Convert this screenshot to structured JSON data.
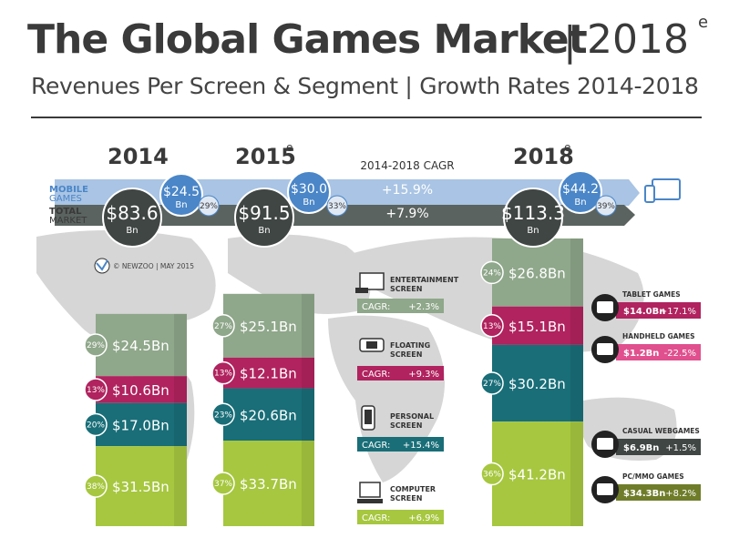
{
  "title": "The Global Games Market",
  "title_year": "2018",
  "title_sup": "e",
  "subtitle": "Revenues Per Screen & Segment | Growth Rates 2014-2018",
  "credit": "© NEWZOO | MAY 2015",
  "legend": {
    "mobile": "MOBILE",
    "mobile_sub": "GAMES",
    "total": "TOTAL",
    "total_sub": "MARKET"
  },
  "cagr_header": "2014-2018 CAGR",
  "cagr_mobile": "+15.9%",
  "cagr_total": "+7.9%",
  "colors": {
    "mobile_arrow": "#a9c4e4",
    "total_arrow": "#5a6360",
    "mobile_bubble": "#4a86c8",
    "total_bubble": "#3f4644",
    "entertainment": "#8fa78a",
    "floating": "#b0235e",
    "personal": "#196e78",
    "computer": "#a6c73f",
    "map": "#d6d6d6"
  },
  "chart_data": {
    "type": "bar",
    "stacked": true,
    "categories": [
      "2014",
      "2015",
      "2018"
    ],
    "category_sup": [
      "",
      "e",
      "e"
    ],
    "series": [
      {
        "name": "ENTERTAINMENT SCREEN",
        "labels": [
          "$24.5Bn",
          "$25.1Bn",
          "$26.8Bn"
        ],
        "values": [
          24.5,
          25.1,
          26.8
        ],
        "shares": [
          "29%",
          "27%",
          "24%"
        ],
        "cagr": "+2.3%"
      },
      {
        "name": "FLOATING SCREEN",
        "labels": [
          "$10.6Bn",
          "$12.1Bn",
          "$15.1Bn"
        ],
        "values": [
          10.6,
          12.1,
          15.1
        ],
        "shares": [
          "13%",
          "13%",
          "13%"
        ],
        "cagr": "+9.3%"
      },
      {
        "name": "PERSONAL SCREEN",
        "labels": [
          "$17.0Bn",
          "$20.6Bn",
          "$30.2Bn"
        ],
        "values": [
          17.0,
          20.6,
          30.2
        ],
        "shares": [
          "20%",
          "23%",
          "27%"
        ],
        "cagr": "+15.4%"
      },
      {
        "name": "COMPUTER SCREEN",
        "labels": [
          "$31.5Bn",
          "$33.7Bn",
          "$41.2Bn"
        ],
        "values": [
          31.5,
          33.7,
          41.2
        ],
        "shares": [
          "38%",
          "37%",
          "36%"
        ],
        "cagr": "+6.9%"
      }
    ],
    "mobile_games": {
      "labels": [
        "$24.5",
        "$30.0",
        "$44.2"
      ],
      "values": [
        24.5,
        30.0,
        44.2
      ],
      "unit": "Bn",
      "shares": [
        "29%",
        "33%",
        "39%"
      ]
    },
    "total_market": {
      "labels": [
        "$83.6",
        "$91.5",
        "$113.3"
      ],
      "values": [
        83.6,
        91.5,
        113.3
      ],
      "unit": "Bn"
    },
    "segments_2018": [
      {
        "name": "TABLET GAMES",
        "value": "$14.0Bn",
        "cagr": "+17.1%"
      },
      {
        "name": "HANDHELD GAMES",
        "value": "$1.2Bn",
        "cagr": "-22.5%"
      },
      {
        "name": "CASUAL WEBGAMES",
        "value": "$6.9Bn",
        "cagr": "+1.5%"
      },
      {
        "name": "PC/MMO GAMES",
        "value": "$34.3Bn",
        "cagr": "+8.2%"
      }
    ],
    "cagr_label": "CAGR:"
  }
}
